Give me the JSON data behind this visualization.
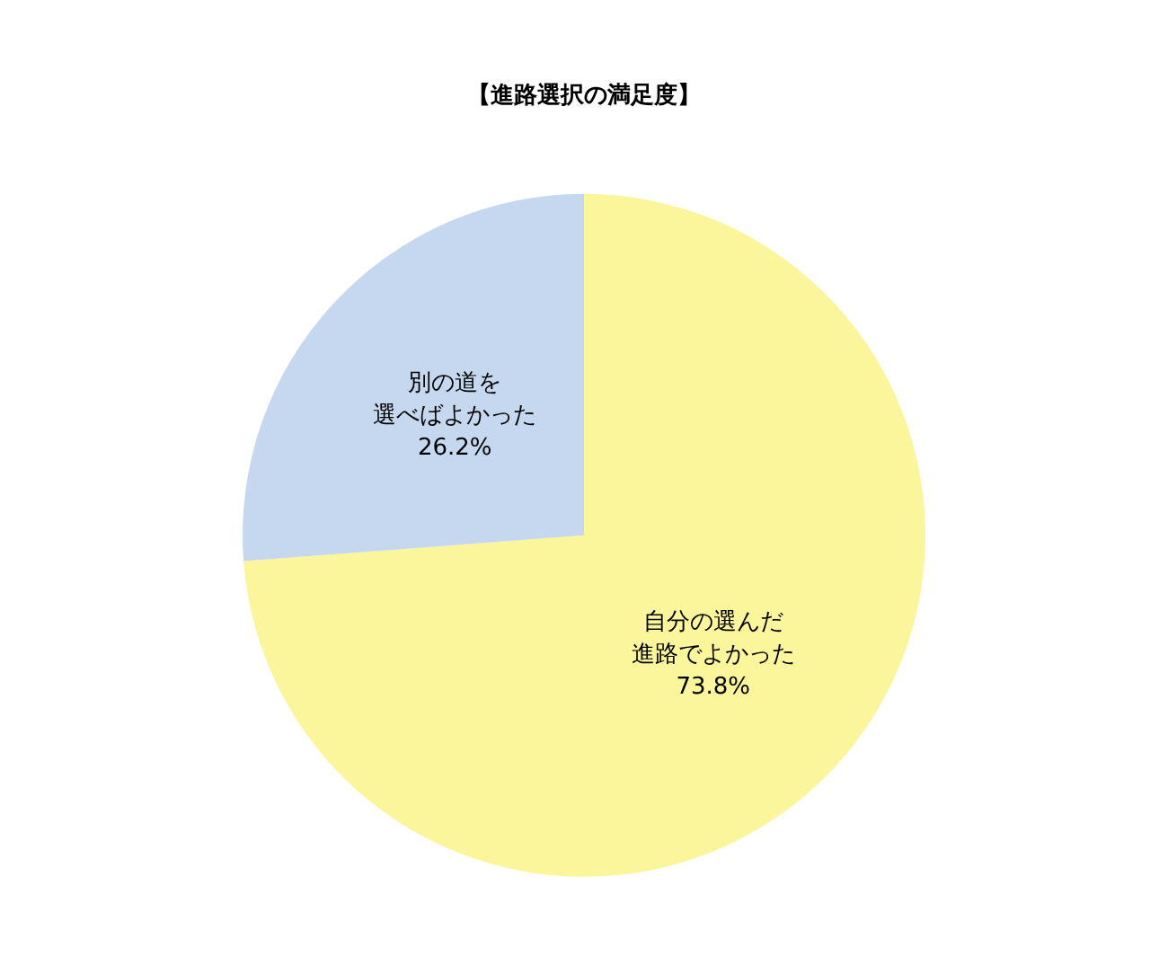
{
  "chart_data": {
    "type": "pie",
    "title": "【進路選択の満足度】",
    "categories": [
      "自分の選んだ進路でよかった",
      "別の道を選べばよかった"
    ],
    "values": [
      73.8,
      26.2
    ],
    "colors": [
      "#fbf59b",
      "#c5d8f0"
    ],
    "value_labels": [
      "73.8%",
      "26.2%"
    ],
    "legend": false
  }
}
